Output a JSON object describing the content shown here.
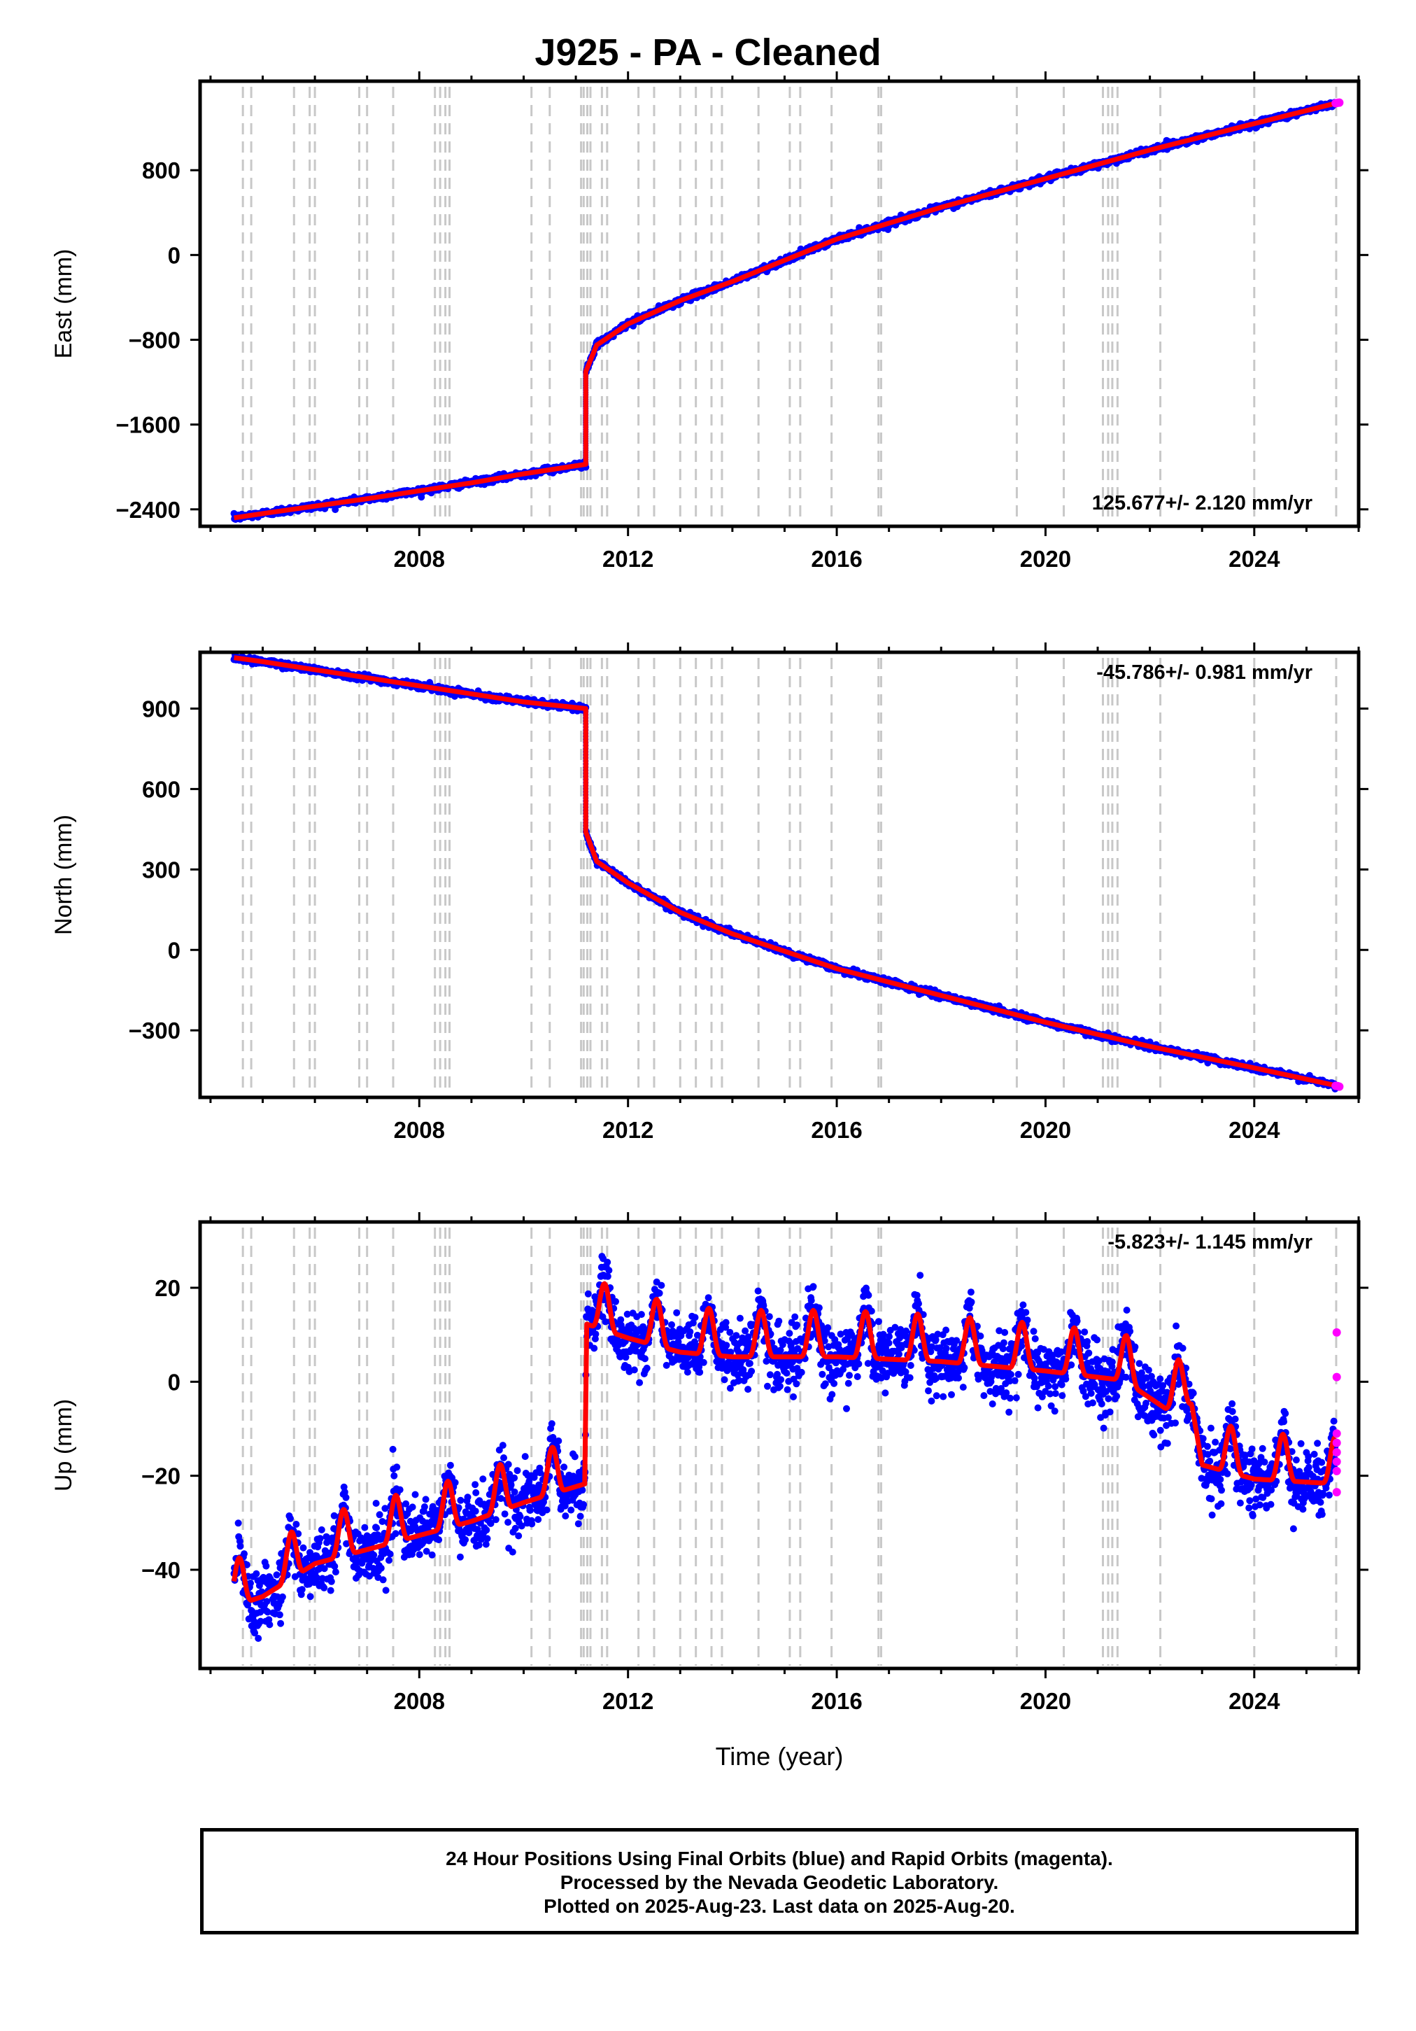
{
  "title": "J925  - PA - Cleaned",
  "colors": {
    "final": "#0000ff",
    "rapid": "#ff00ff",
    "model": "#ff0000",
    "event": "#c8c8c8",
    "frame": "#000000"
  },
  "footer": {
    "line1": "24 Hour Positions Using Final Orbits (blue) and Rapid Orbits (magenta).",
    "line2": "Processed by the Nevada Geodetic Laboratory.",
    "line3": "Plotted on 2025-Aug-23. Last data on 2025-Aug-20."
  },
  "chart_data": [
    {
      "type": "scatter",
      "panel": "east",
      "ylabel": "East (mm)",
      "xlabel": "",
      "xlim": [
        2003.8,
        2026.0
      ],
      "ylim": [
        -2560,
        1640
      ],
      "yticks": [
        -2400,
        -1600,
        -800,
        0,
        800
      ],
      "xticks": [
        2008,
        2012,
        2016,
        2020,
        2024
      ],
      "rate_label": "125.677+/- 2.120 mm/yr",
      "rate_position": "bottom-right",
      "earthquake": {
        "time": 2011.19,
        "before": -1975,
        "after": -1100
      },
      "series": [
        {
          "kind": "final",
          "x": [
            2004.45,
            2005,
            2006,
            2007,
            2008,
            2009,
            2010,
            2011.19,
            2011.19,
            2011.4,
            2012,
            2013,
            2014,
            2016,
            2018,
            2020,
            2022,
            2024,
            2025.55
          ],
          "y": [
            -2480,
            -2440,
            -2370,
            -2300,
            -2225,
            -2150,
            -2065,
            -1975,
            -1100,
            -850,
            -650,
            -430,
            -250,
            150,
            450,
            720,
            990,
            1240,
            1430
          ]
        },
        {
          "kind": "rapid",
          "x": [
            2025.56,
            2025.6,
            2025.63
          ],
          "y": [
            1432,
            1436,
            1438
          ]
        }
      ]
    },
    {
      "type": "scatter",
      "panel": "north",
      "ylabel": "North (mm)",
      "xlabel": "",
      "xlim": [
        2003.8,
        2026.0
      ],
      "ylim": [
        -550,
        1110
      ],
      "yticks": [
        -300,
        0,
        300,
        600,
        900
      ],
      "xticks": [
        2008,
        2012,
        2016,
        2020,
        2024
      ],
      "rate_label": "-45.786+/- 0.981 mm/yr",
      "rate_position": "top-right",
      "earthquake": {
        "time": 2011.19,
        "before": 900,
        "after": 440
      },
      "series": [
        {
          "kind": "final",
          "x": [
            2004.45,
            2005,
            2006,
            2007,
            2008,
            2009,
            2010,
            2011.19,
            2011.19,
            2011.4,
            2012,
            2013,
            2014,
            2016,
            2018,
            2020,
            2022,
            2024,
            2025.55
          ],
          "y": [
            1090,
            1075,
            1045,
            1015,
            985,
            955,
            925,
            900,
            440,
            330,
            250,
            140,
            60,
            -70,
            -170,
            -270,
            -360,
            -440,
            -505
          ]
        },
        {
          "kind": "rapid",
          "x": [
            2025.56,
            2025.6,
            2025.63
          ],
          "y": [
            -507,
            -508,
            -510
          ]
        }
      ]
    },
    {
      "type": "scatter",
      "panel": "up",
      "ylabel": "Up (mm)",
      "xlabel": "Time (year)",
      "xlim": [
        2003.8,
        2026.0
      ],
      "ylim": [
        -61,
        34
      ],
      "yticks": [
        -40,
        -20,
        0,
        20
      ],
      "xticks": [
        2008,
        2012,
        2016,
        2020,
        2024
      ],
      "rate_label": "-5.823+/- 1.145 mm/yr",
      "rate_position": "top-right",
      "seasonal_amplitude": 4.5,
      "scatter_sd": 3.2,
      "series": [
        {
          "kind": "trend",
          "x": [
            2004.45,
            2005,
            2006,
            2007,
            2008,
            2009,
            2010,
            2011.18,
            2011.2,
            2012,
            2013,
            2014,
            2016,
            2018,
            2020,
            2021.5,
            2022.3,
            2022.8,
            2023,
            2024,
            2025.55
          ],
          "y": [
            -45,
            -43,
            -36,
            -33,
            -30,
            -27,
            -23,
            -19,
            15,
            12,
            9,
            8,
            8,
            7,
            5,
            3,
            -3,
            -2,
            -15,
            -18,
            -19
          ]
        },
        {
          "kind": "rapid",
          "x": [
            2025.58,
            2025.58,
            2025.58,
            2025.58,
            2025.58,
            2025.58,
            2025.58,
            2025.58
          ],
          "y": [
            10.5,
            1,
            -11,
            -13,
            -15,
            -17,
            -19,
            -23.5
          ]
        }
      ]
    }
  ],
  "event_lines": [
    2004.62,
    2004.78,
    2005.6,
    2005.9,
    2006.0,
    2006.85,
    2007.0,
    2007.5,
    2008.3,
    2008.4,
    2008.5,
    2008.58,
    2010.15,
    2010.5,
    2011.1,
    2011.15,
    2011.22,
    2011.28,
    2011.5,
    2011.6,
    2012.2,
    2012.5,
    2013.0,
    2013.3,
    2013.6,
    2013.8,
    2014.5,
    2015.1,
    2015.3,
    2015.9,
    2016.8,
    2016.85,
    2019.45,
    2020.35,
    2021.1,
    2021.2,
    2021.28,
    2021.38,
    2022.2,
    2024.0,
    2025.57
  ]
}
